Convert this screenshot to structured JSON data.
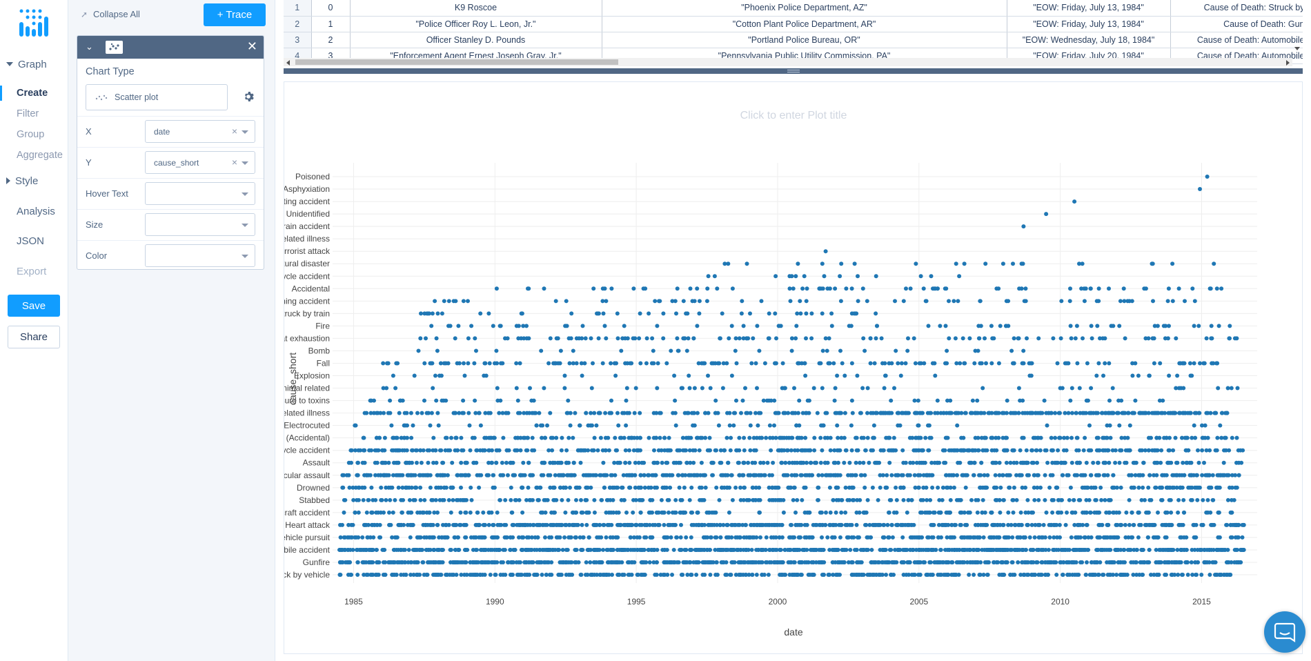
{
  "nav": {
    "graph_label": "Graph",
    "graph_items": [
      "Create",
      "Filter",
      "Group",
      "Aggregate"
    ],
    "style_label": "Style",
    "analysis_label": "Analysis",
    "json_label": "JSON",
    "export_label": "Export",
    "save_label": "Save",
    "share_label": "Share"
  },
  "panel": {
    "collapse_all": "Collapse All",
    "add_trace": "+ Trace",
    "chart_type_title": "Chart Type",
    "chart_type_value": "Scatter plot",
    "fields": [
      {
        "label": "X",
        "value": "date"
      },
      {
        "label": "Y",
        "value": "cause_short"
      },
      {
        "label": "Hover Text",
        "value": ""
      },
      {
        "label": "Size",
        "value": ""
      },
      {
        "label": "Color",
        "value": ""
      }
    ]
  },
  "grid": {
    "rows": [
      [
        "1",
        "0",
        "K9 Roscoe",
        "\"Phoenix Police Department, AZ\"",
        "\"EOW: Friday, July 13, 1984\"",
        "Cause of Death: Struck by"
      ],
      [
        "2",
        "1",
        "\"Police Officer Roy L. Leon, Jr.\"",
        "\"Cotton Plant Police Department, AR\"",
        "\"EOW: Friday, July 13, 1984\"",
        "Cause of Death: Gun"
      ],
      [
        "3",
        "2",
        "Officer Stanley D. Pounds",
        "\"Portland Police Bureau, OR\"",
        "\"EOW: Wednesday, July 18, 1984\"",
        "Cause of Death: Automobile"
      ],
      [
        "4",
        "3",
        "\"Enforcement Agent Ernest Joseph Gray, Jr.\"",
        "\"Pennsylvania Public Utility Commission, PA\"",
        "\"EOW: Friday, July 20, 1984\"",
        "Cause of Death: Automobile"
      ]
    ]
  },
  "plot": {
    "title_placeholder": "Click to enter Plot title"
  },
  "chart_data": {
    "type": "scatter",
    "title": "",
    "xlabel": "date",
    "ylabel": "cause_short",
    "xlim": [
      1984.5,
      2016.6
    ],
    "xticks": [
      1985,
      1990,
      1995,
      2000,
      2005,
      2010,
      2015
    ],
    "grid": true,
    "marker_color": "#1f77b4",
    "categories_bottom_to_top": [
      "ruck by vehicle",
      "Gunfire",
      "obile accident",
      "Vehicle pursuit",
      "Heart attack",
      "rcraft accident",
      "Stabbed",
      "Drowned",
      "hicular assault",
      "Assault",
      "rcycle accident",
      "re (Accidental)",
      "Electrocuted",
      "related illness",
      "osure to toxins",
      "Animal related",
      "Explosion",
      "Fall",
      "Bomb",
      "eat exhaustion",
      "Fire",
      "Struck by train",
      "ining accident",
      "Accidental",
      "icycle accident",
      "atural disaster",
      "errorist attack",
      "related illness",
      "Train accident",
      "Unidentified",
      "oating accident",
      "Asphyxiation",
      "Poisoned"
    ],
    "series": [
      {
        "category": "ruck by vehicle",
        "density": 0.62,
        "x_min": 1984.5,
        "x_max": 2016.1
      },
      {
        "category": "Gunfire",
        "density": 1.0,
        "x_min": 1984.5,
        "x_max": 2016.5
      },
      {
        "category": "obile accident",
        "density": 1.0,
        "x_min": 1984.5,
        "x_max": 2016.5
      },
      {
        "category": "Vehicle pursuit",
        "density": 0.55,
        "x_min": 1984.5,
        "x_max": 2016.5
      },
      {
        "category": "Heart attack",
        "density": 0.75,
        "x_min": 1984.5,
        "x_max": 2016.5
      },
      {
        "category": "rcraft accident",
        "density": 0.35,
        "x_min": 1984.5,
        "x_max": 2016.2
      },
      {
        "category": "Stabbed",
        "density": 0.35,
        "x_min": 1984.6,
        "x_max": 2016.2
      },
      {
        "category": "Drowned",
        "density": 0.4,
        "x_min": 1984.6,
        "x_max": 2016.3
      },
      {
        "category": "hicular assault",
        "density": 0.65,
        "x_min": 1984.6,
        "x_max": 2016.5
      },
      {
        "category": "Assault",
        "density": 0.4,
        "x_min": 1984.6,
        "x_max": 2016.5
      },
      {
        "category": "rcycle accident",
        "density": 0.5,
        "x_min": 1984.9,
        "x_max": 2016.5
      },
      {
        "category": "re (Accidental)",
        "density": 0.35,
        "x_min": 1984.9,
        "x_max": 2016.5
      },
      {
        "category": "Electrocuted",
        "density": 0.1,
        "x_min": 1985.0,
        "x_max": 2015.7
      },
      {
        "category": "related illness",
        "density": 0.35,
        "x_min": 1985.1,
        "x_max": 2015.8
      },
      {
        "category": "osure to toxins",
        "density": 0.1,
        "x_min": 1985.5,
        "x_max": 2014.0
      },
      {
        "category": "Animal related",
        "density": 0.08,
        "x_min": 1986.0,
        "x_max": 2016.4
      },
      {
        "category": "Explosion",
        "density": 0.06,
        "x_min": 1986.0,
        "x_max": 2015.0
      },
      {
        "category": "Fall",
        "density": 0.25,
        "x_min": 1986.0,
        "x_max": 2015.7
      },
      {
        "category": "Bomb",
        "density": 0.06,
        "x_min": 1986.1,
        "x_max": 2008.9
      },
      {
        "category": "eat exhaustion",
        "density": 0.18,
        "x_min": 1987.0,
        "x_max": 2016.5
      },
      {
        "category": "Fire",
        "density": 0.1,
        "x_min": 1987.0,
        "x_max": 2016.1
      },
      {
        "category": "Struck by train",
        "density": 0.12,
        "x_min": 1987.1,
        "x_max": 2004.1
      },
      {
        "category": "ining accident",
        "density": 0.1,
        "x_min": 1987.8,
        "x_max": 2016.3
      },
      {
        "category": "Accidental",
        "density": 0.12,
        "x_min": 1989.8,
        "x_max": 2016.5
      },
      {
        "category": "icycle accident",
        "density": 0.05,
        "x_min": 1993.1,
        "x_max": 2006.6
      },
      {
        "category": "atural disaster",
        "density": 0.06,
        "x_min": 1998.0,
        "x_max": 2015.9
      },
      {
        "category": "errorist attack",
        "density": 0.02,
        "x_min": 2001.7,
        "x_max": 2001.7
      },
      {
        "category": "related illness",
        "density": 0.55,
        "x_min": 2003.3,
        "x_max": 2016.0
      },
      {
        "category": "Train accident",
        "density": 0.01,
        "x_min": 2008.7,
        "x_max": 2008.7
      },
      {
        "category": "Unidentified",
        "density": 0.01,
        "x_min": 2009.5,
        "x_max": 2009.5
      },
      {
        "category": "oating accident",
        "density": 0.01,
        "x_min": 2010.5,
        "x_max": 2010.5
      },
      {
        "category": "Asphyxiation",
        "density": 0.02,
        "x_min": 2013.3,
        "x_max": 2016.0
      },
      {
        "category": "Poisoned",
        "density": 0.01,
        "x_min": 2015.2,
        "x_max": 2015.2
      }
    ]
  }
}
